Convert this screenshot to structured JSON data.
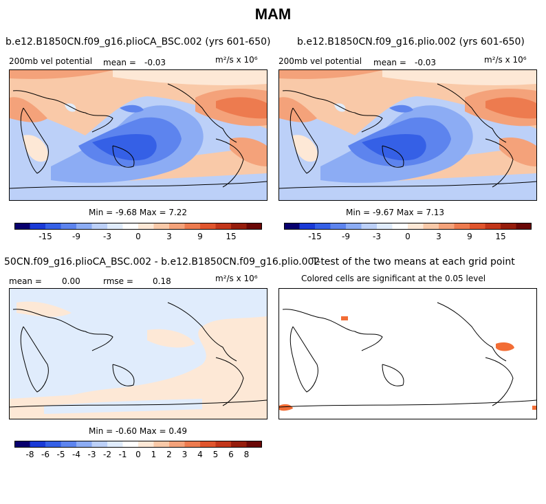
{
  "figure": {
    "title": "MAM"
  },
  "panels": [
    {
      "title": "b.e12.B1850CN.f09_g16.plioCA_BSC.002 (yrs 601-650)",
      "variable": "200mb vel potential",
      "mean_label": "mean =",
      "mean_value": "-0.03",
      "units": "m²/s x 10⁶",
      "stats": "Min =   -9.68 Max =    7.22"
    },
    {
      "title": "b.e12.B1850CN.f09_g16.plio.002 (yrs 601-650)",
      "variable": "200mb vel potential",
      "mean_label": "mean =",
      "mean_value": "-0.03",
      "units": "m²/s x 10⁶",
      "stats": "Min =   -9.67 Max =    7.13"
    },
    {
      "title": "50CN.f09_g16.plioCA_BSC.002 - b.e12.B1850CN.f09_g16.plio.002",
      "mean_label": "mean =",
      "mean_value": "0.00",
      "rmse_label": "rmse =",
      "rmse_value": "0.18",
      "units": "m²/s x 10⁶",
      "stats": "Min =   -0.60 Max =    0.49"
    },
    {
      "title": "T-test of the two means at each grid point",
      "subtitle": "Colored cells are significant at the 0.05 level"
    }
  ],
  "colors": {
    "scale": [
      "#08006e",
      "#1a3ad6",
      "#3560e6",
      "#5d84ee",
      "#8cacf4",
      "#bcd0f8",
      "#e0ecfc",
      "#ffffff",
      "#fde8d6",
      "#f9c9a8",
      "#f4a27a",
      "#ed7b4f",
      "#e0552d",
      "#c2361a",
      "#961d0c",
      "#6a0806"
    ],
    "land_outline": "#000000",
    "significant": "#f26d35"
  },
  "chart_data": [
    {
      "type": "heatmap",
      "panel": "top-left",
      "field": "200mb velocity potential",
      "units": "m^2/s x 10^6",
      "mean": -0.03,
      "min": -9.68,
      "max": 7.22,
      "colorbar_levels": [
        -18,
        -15,
        -12,
        -9,
        -6,
        -3,
        -1,
        1,
        3,
        6,
        9,
        12,
        15,
        18
      ],
      "colorbar_tick_labels": [
        "-15",
        "-9",
        "-3",
        "0",
        "3",
        "9",
        "15"
      ]
    },
    {
      "type": "heatmap",
      "panel": "top-right",
      "field": "200mb velocity potential",
      "units": "m^2/s x 10^6",
      "mean": -0.03,
      "min": -9.67,
      "max": 7.13,
      "colorbar_levels": [
        -18,
        -15,
        -12,
        -9,
        -6,
        -3,
        -1,
        1,
        3,
        6,
        9,
        12,
        15,
        18
      ],
      "colorbar_tick_labels": [
        "-15",
        "-9",
        "-3",
        "0",
        "3",
        "9",
        "15"
      ]
    },
    {
      "type": "heatmap",
      "panel": "bottom-left",
      "field": "difference",
      "units": "m^2/s x 10^6",
      "mean": 0.0,
      "rmse": 0.18,
      "min": -0.6,
      "max": 0.49,
      "colorbar_tick_labels": [
        "-8",
        "-6",
        "-5",
        "-4",
        "-3",
        "-2",
        "-1",
        "0",
        "1",
        "2",
        "3",
        "4",
        "5",
        "6",
        "8"
      ]
    },
    {
      "type": "heatmap",
      "panel": "bottom-right",
      "field": "t-test significance (0.05)"
    }
  ]
}
